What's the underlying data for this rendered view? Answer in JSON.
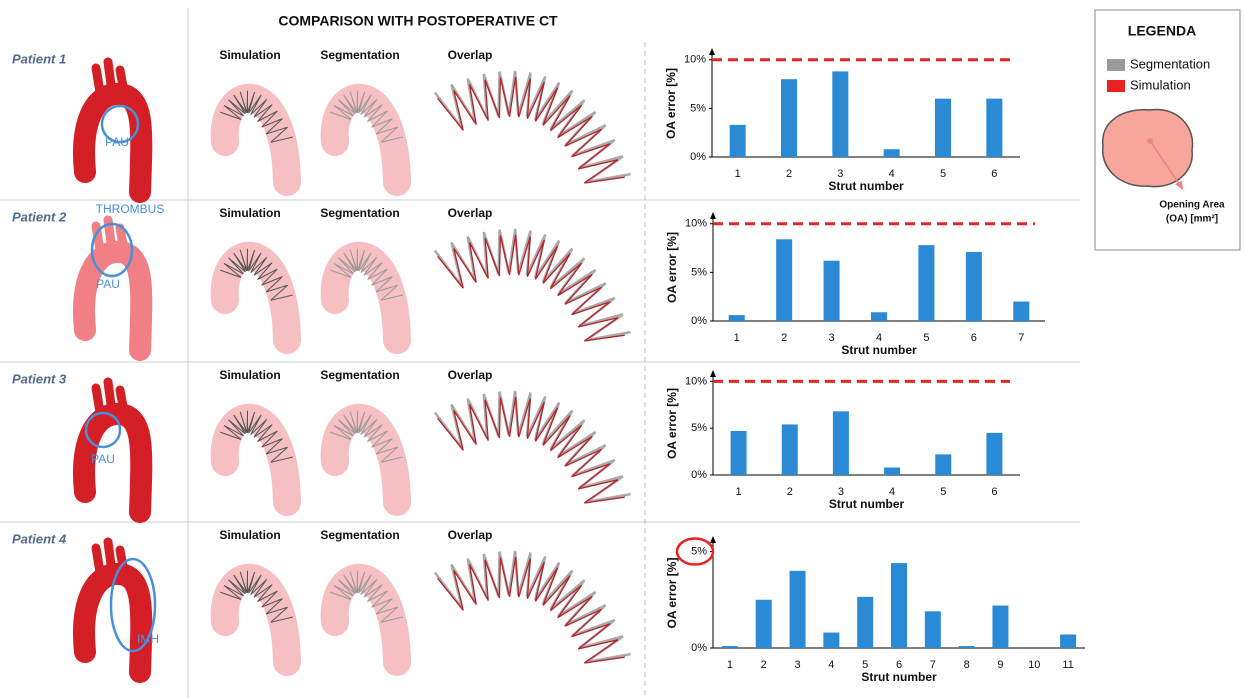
{
  "title": "COMPARISON WITH POSTOPERATIVE CT",
  "legend": {
    "title": "LEGENDA",
    "items": [
      "Segmentation",
      "Simulation"
    ],
    "colors": [
      "#9a9a9a",
      "#e8231f"
    ],
    "area_label": "Opening Area",
    "area_unit": "(OA) [mm²]"
  },
  "patients": [
    {
      "name": "Patient 1",
      "annotations": [
        "PAU"
      ],
      "panels": [
        "Simulation",
        "Segmentation",
        "Overlap"
      ]
    },
    {
      "name": "Patient 2",
      "annotations": [
        "THROMBUS",
        "PAU"
      ],
      "panels": [
        "Simulation",
        "Segmentation",
        "Overlap"
      ]
    },
    {
      "name": "Patient 3",
      "annotations": [
        "PAU"
      ],
      "panels": [
        "Simulation",
        "Segmentation",
        "Overlap"
      ]
    },
    {
      "name": "Patient 4",
      "annotations": [
        "IMH"
      ],
      "panels": [
        "Simulation",
        "Segmentation",
        "Overlap"
      ]
    }
  ],
  "chart_data": [
    {
      "type": "bar",
      "ylabel": "OA error [%]",
      "xlabel": "Strut number",
      "categories": [
        "1",
        "2",
        "3",
        "4",
        "5",
        "6"
      ],
      "values": [
        3.3,
        8.0,
        8.8,
        0.8,
        6.0,
        6.0
      ],
      "color": "#2a8ad6",
      "ylim": [
        0,
        11
      ],
      "yticks": [
        {
          "value": 0,
          "label": "0%"
        },
        {
          "value": 5,
          "label": "5%"
        },
        {
          "value": 10,
          "label": "10%"
        }
      ],
      "threshold": 10,
      "threshold_color": "#e8231f"
    },
    {
      "type": "bar",
      "ylabel": "OA error [%]",
      "xlabel": "Strut number",
      "categories": [
        "1",
        "2",
        "3",
        "4",
        "5",
        "6",
        "7"
      ],
      "values": [
        0.6,
        8.4,
        6.2,
        0.9,
        7.8,
        7.1,
        2.0
      ],
      "color": "#2a8ad6",
      "ylim": [
        0,
        11
      ],
      "yticks": [
        {
          "value": 0,
          "label": "0%"
        },
        {
          "value": 5,
          "label": "5%"
        },
        {
          "value": 10,
          "label": "10%"
        }
      ],
      "threshold": 10,
      "threshold_color": "#e8231f"
    },
    {
      "type": "bar",
      "ylabel": "OA error [%]",
      "xlabel": "Strut number",
      "categories": [
        "1",
        "2",
        "3",
        "4",
        "5",
        "6"
      ],
      "values": [
        4.7,
        5.4,
        6.8,
        0.8,
        2.2,
        4.5
      ],
      "color": "#2a8ad6",
      "ylim": [
        0,
        11
      ],
      "yticks": [
        {
          "value": 0,
          "label": "0%"
        },
        {
          "value": 5,
          "label": "5%"
        },
        {
          "value": 10,
          "label": "10%"
        }
      ],
      "threshold": 10,
      "threshold_color": "#e8231f"
    },
    {
      "type": "bar",
      "ylabel": "OA error [%]",
      "xlabel": "Strut number",
      "categories": [
        "1",
        "2",
        "3",
        "4",
        "5",
        "6",
        "7",
        "8",
        "9",
        "10",
        "11"
      ],
      "values": [
        0.1,
        2.5,
        4.0,
        0.8,
        2.65,
        4.4,
        1.9,
        0.1,
        2.2,
        0,
        0.7
      ],
      "color": "#2a8ad6",
      "ylim": [
        0,
        5.7
      ],
      "yticks": [
        {
          "value": 0,
          "label": "0%"
        },
        {
          "value": 5,
          "label": "5%"
        }
      ],
      "circled_tick": true,
      "threshold_color": "#e8231f"
    }
  ]
}
